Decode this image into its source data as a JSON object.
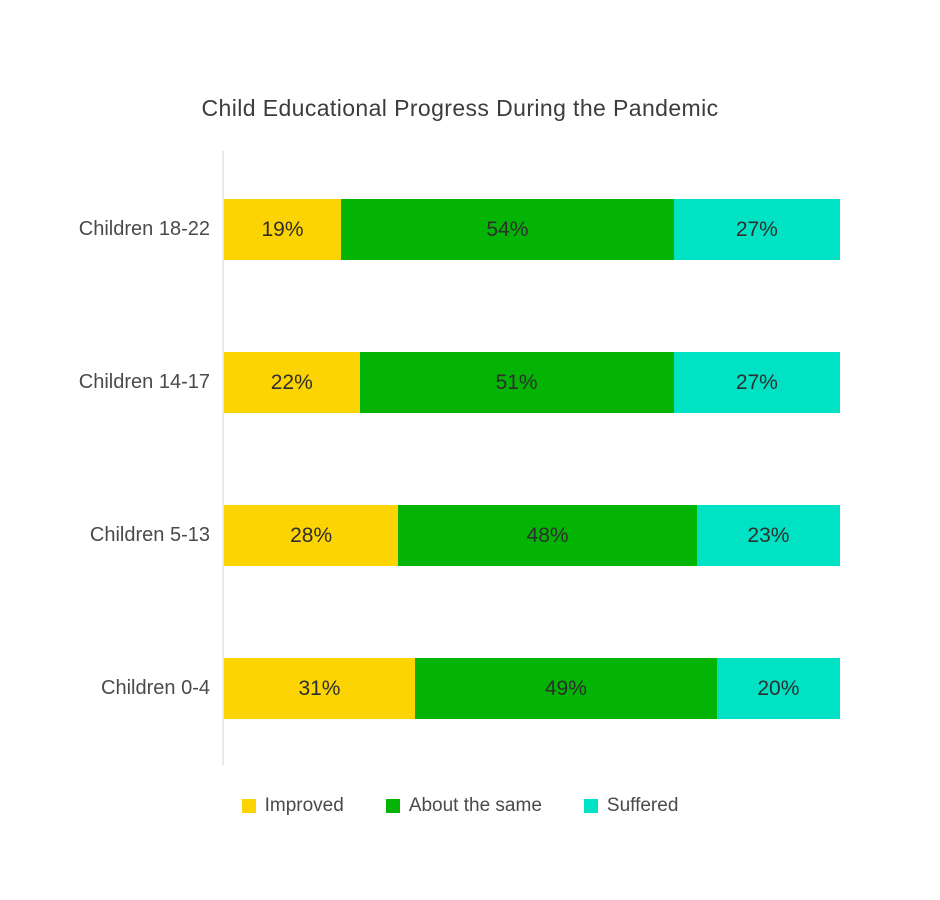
{
  "chart_data": {
    "type": "bar",
    "orientation": "horizontal",
    "stacked": true,
    "title": "Child Educational Progress During the Pandemic",
    "categories": [
      "Children 18-22",
      "Children 14-17",
      "Children 5-13",
      "Children 0-4"
    ],
    "series": [
      {
        "name": "Improved",
        "color": "#fcd403",
        "values": [
          19,
          22,
          28,
          31
        ]
      },
      {
        "name": "About the same",
        "color": "#04b404",
        "values": [
          54,
          51,
          48,
          49
        ]
      },
      {
        "name": "Suffered",
        "color": "#00e2c4",
        "values": [
          27,
          27,
          23,
          20
        ]
      }
    ],
    "value_suffix": "%",
    "legend_position": "bottom",
    "grid": false,
    "axis_color": "#e7e9ec"
  }
}
